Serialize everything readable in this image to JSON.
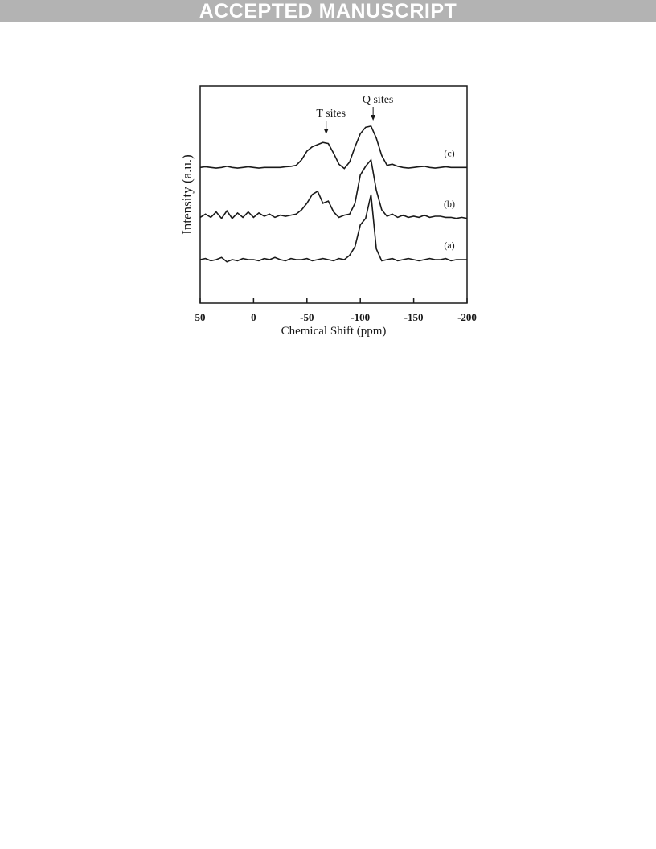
{
  "header": {
    "banner": "ACCEPTED MANUSCRIPT"
  },
  "chart_data": {
    "type": "line",
    "xlabel": "Chemical Shift (ppm)",
    "ylabel": "Intensity (a.u.)",
    "x": [
      50,
      45,
      40,
      35,
      30,
      25,
      20,
      15,
      10,
      5,
      0,
      -5,
      -10,
      -15,
      -20,
      -25,
      -30,
      -35,
      -40,
      -45,
      -50,
      -55,
      -60,
      -65,
      -70,
      -75,
      -80,
      -85,
      -90,
      -95,
      -100,
      -105,
      -110,
      -115,
      -120,
      -125,
      -130,
      -135,
      -140,
      -145,
      -150,
      -155,
      -160,
      -165,
      -170,
      -175,
      -180,
      -185,
      -190,
      -195,
      -200
    ],
    "series": [
      {
        "name": "(a)",
        "color": "#1a1a1a",
        "values": [
          2.0,
          2.05,
          1.95,
          2.0,
          2.1,
          1.9,
          2.0,
          1.95,
          2.05,
          2.0,
          2.0,
          1.95,
          2.05,
          2.0,
          2.1,
          2.0,
          1.95,
          2.05,
          2.0,
          2.0,
          2.05,
          1.95,
          2.0,
          2.05,
          2.0,
          1.95,
          2.05,
          2.0,
          2.2,
          2.6,
          3.6,
          3.9,
          5.0,
          2.5,
          1.95,
          2.0,
          2.05,
          1.95,
          2.0,
          2.05,
          2.0,
          1.95,
          2.0,
          2.05,
          2.0,
          2.0,
          2.05,
          1.95,
          2.0,
          2.0,
          2.0
        ]
      },
      {
        "name": "(b)",
        "color": "#1a1a1a",
        "values": [
          3.95,
          4.1,
          3.95,
          4.2,
          3.9,
          4.25,
          3.9,
          4.15,
          3.95,
          4.2,
          3.95,
          4.15,
          4.0,
          4.1,
          3.95,
          4.05,
          4.0,
          4.05,
          4.1,
          4.3,
          4.6,
          5.0,
          5.15,
          4.6,
          4.7,
          4.2,
          3.95,
          4.05,
          4.1,
          4.6,
          5.9,
          6.3,
          6.6,
          5.2,
          4.3,
          4.0,
          4.1,
          3.95,
          4.05,
          3.95,
          4.0,
          3.95,
          4.05,
          3.95,
          4.0,
          4.0,
          3.95,
          3.95,
          3.9,
          3.95,
          3.9
        ]
      },
      {
        "name": "(c)",
        "color": "#1a1a1a",
        "values": [
          6.25,
          6.28,
          6.25,
          6.22,
          6.25,
          6.3,
          6.25,
          6.22,
          6.25,
          6.28,
          6.25,
          6.22,
          6.25,
          6.25,
          6.25,
          6.25,
          6.28,
          6.3,
          6.35,
          6.6,
          7.0,
          7.2,
          7.3,
          7.4,
          7.35,
          6.9,
          6.4,
          6.2,
          6.5,
          7.2,
          7.8,
          8.1,
          8.15,
          7.6,
          6.8,
          6.35,
          6.4,
          6.3,
          6.25,
          6.22,
          6.25,
          6.28,
          6.3,
          6.25,
          6.22,
          6.25,
          6.28,
          6.25,
          6.25,
          6.25,
          6.25
        ]
      }
    ],
    "annotations": [
      {
        "text": "T sites",
        "x": -68
      },
      {
        "text": "Q sites",
        "x": -112
      }
    ],
    "xlim": [
      50,
      -200
    ],
    "xticks": [
      50,
      0,
      -50,
      -100,
      -150,
      -200
    ],
    "ylim": [
      0,
      10
    ]
  }
}
